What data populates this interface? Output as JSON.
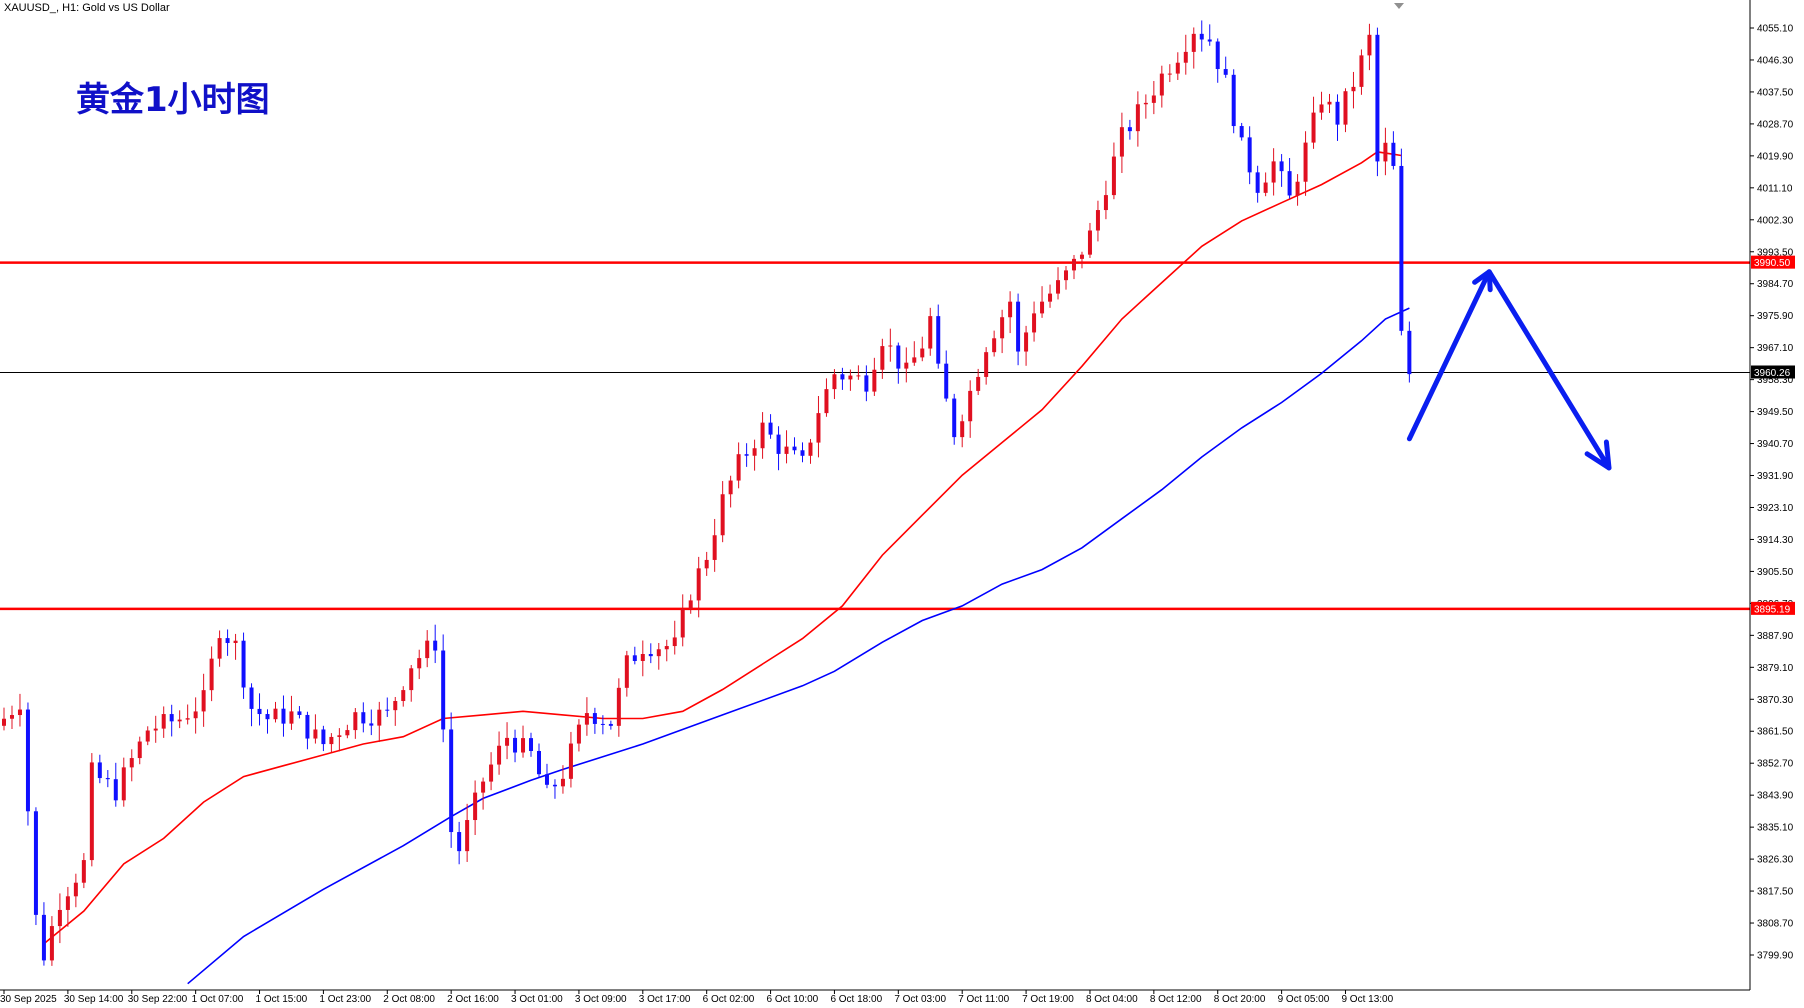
{
  "header": {
    "symbol_label": "XAUUSD_, H1:  Gold vs US Dollar",
    "chart_title": "黄金1小时图"
  },
  "colors": {
    "bull": "#e01020",
    "bear": "#1010ff",
    "ma_fast": "#ff0000",
    "ma_slow": "#0000ff",
    "level_line": "#ff0000",
    "arrow": "#0a1ef0",
    "axis": "#000000",
    "background": "#ffffff"
  },
  "chart_data": {
    "type": "candlestick",
    "symbol": "XAUUSD_",
    "timeframe": "H1",
    "ylim": [
      3791.0,
      4060.0
    ],
    "y_ticks": [
      4055.1,
      4046.3,
      4037.5,
      4028.7,
      4019.9,
      4011.1,
      4002.3,
      3993.5,
      3984.7,
      3975.9,
      3967.1,
      3958.3,
      3949.5,
      3940.7,
      3931.9,
      3923.1,
      3914.3,
      3905.5,
      3896.7,
      3887.9,
      3879.1,
      3870.3,
      3861.5,
      3852.7,
      3843.9,
      3835.1,
      3826.3,
      3817.5,
      3808.7,
      3799.9
    ],
    "y_tick_labels": [
      "4055.10",
      "4046.30",
      "4037.50",
      "4028.70",
      "4019.90",
      "4011.10",
      "4002.30",
      "3993.50",
      "3984.70",
      "3975.90",
      "3967.10",
      "3958.30",
      "3949.50",
      "3940.70",
      "3931.90",
      "3923.10",
      "3914.30",
      "3905.50",
      "3896.70",
      "3887.90",
      "3879.10",
      "3870.30",
      "3861.50",
      "3852.70",
      "3843.90",
      "3835.10",
      "3826.30",
      "3817.50",
      "3808.70",
      "3799.90"
    ],
    "x_ticks": [
      {
        "label": "30 Sep 2025",
        "index": 0
      },
      {
        "label": "30 Sep 14:00",
        "index": 8
      },
      {
        "label": "30 Sep 22:00",
        "index": 16
      },
      {
        "label": "1 Oct 07:00",
        "index": 24
      },
      {
        "label": "1 Oct 15:00",
        "index": 32
      },
      {
        "label": "1 Oct 23:00",
        "index": 40
      },
      {
        "label": "2 Oct 08:00",
        "index": 48
      },
      {
        "label": "2 Oct 16:00",
        "index": 56
      },
      {
        "label": "3 Oct 01:00",
        "index": 64
      },
      {
        "label": "3 Oct 09:00",
        "index": 72
      },
      {
        "label": "3 Oct 17:00",
        "index": 80
      },
      {
        "label": "6 Oct 02:00",
        "index": 88
      },
      {
        "label": "6 Oct 10:00",
        "index": 96
      },
      {
        "label": "6 Oct 18:00",
        "index": 104
      },
      {
        "label": "7 Oct 03:00",
        "index": 112
      },
      {
        "label": "7 Oct 11:00",
        "index": 120
      },
      {
        "label": "7 Oct 19:00",
        "index": 128
      },
      {
        "label": "8 Oct 04:00",
        "index": 136
      },
      {
        "label": "8 Oct 12:00",
        "index": 144
      },
      {
        "label": "8 Oct 20:00",
        "index": 152
      },
      {
        "label": "9 Oct 05:00",
        "index": 160
      },
      {
        "label": "9 Oct 13:00",
        "index": 168
      }
    ],
    "horizontal_levels": [
      {
        "price": 3990.5,
        "label": "3990.50"
      },
      {
        "price": 3895.19,
        "label": "3895.19"
      }
    ],
    "current_price": {
      "price": 3960.26,
      "label": "3960.26"
    },
    "anchors": [
      {
        "i": 0,
        "price": 3865
      },
      {
        "i": 2,
        "price": 3870
      },
      {
        "i": 4,
        "price": 3810
      },
      {
        "i": 5,
        "price": 3800
      },
      {
        "i": 7,
        "price": 3815
      },
      {
        "i": 10,
        "price": 3825
      },
      {
        "i": 11,
        "price": 3850
      },
      {
        "i": 14,
        "price": 3845
      },
      {
        "i": 18,
        "price": 3862
      },
      {
        "i": 22,
        "price": 3865
      },
      {
        "i": 25,
        "price": 3870
      },
      {
        "i": 27,
        "price": 3890
      },
      {
        "i": 29,
        "price": 3885
      },
      {
        "i": 31,
        "price": 3868
      },
      {
        "i": 33,
        "price": 3865
      },
      {
        "i": 36,
        "price": 3866
      },
      {
        "i": 40,
        "price": 3858
      },
      {
        "i": 44,
        "price": 3866
      },
      {
        "i": 48,
        "price": 3866
      },
      {
        "i": 51,
        "price": 3880
      },
      {
        "i": 54,
        "price": 3886
      },
      {
        "i": 55,
        "price": 3862
      },
      {
        "i": 56,
        "price": 3834
      },
      {
        "i": 57,
        "price": 3829
      },
      {
        "i": 60,
        "price": 3848
      },
      {
        "i": 63,
        "price": 3860
      },
      {
        "i": 66,
        "price": 3855
      },
      {
        "i": 68,
        "price": 3844
      },
      {
        "i": 70,
        "price": 3850
      },
      {
        "i": 73,
        "price": 3867
      },
      {
        "i": 76,
        "price": 3864
      },
      {
        "i": 78,
        "price": 3880
      },
      {
        "i": 80,
        "price": 3885
      },
      {
        "i": 84,
        "price": 3885
      },
      {
        "i": 86,
        "price": 3900
      },
      {
        "i": 88,
        "price": 3910
      },
      {
        "i": 90,
        "price": 3925
      },
      {
        "i": 92,
        "price": 3935
      },
      {
        "i": 95,
        "price": 3945
      },
      {
        "i": 97,
        "price": 3940
      },
      {
        "i": 100,
        "price": 3935
      },
      {
        "i": 102,
        "price": 3950
      },
      {
        "i": 104,
        "price": 3960
      },
      {
        "i": 108,
        "price": 3958
      },
      {
        "i": 110,
        "price": 3970
      },
      {
        "i": 113,
        "price": 3960
      },
      {
        "i": 115,
        "price": 3968
      },
      {
        "i": 116,
        "price": 3975
      },
      {
        "i": 117,
        "price": 3960
      },
      {
        "i": 119,
        "price": 3944
      },
      {
        "i": 121,
        "price": 3955
      },
      {
        "i": 123,
        "price": 3968
      },
      {
        "i": 126,
        "price": 3980
      },
      {
        "i": 127,
        "price": 3965
      },
      {
        "i": 129,
        "price": 3978
      },
      {
        "i": 132,
        "price": 3984
      },
      {
        "i": 134,
        "price": 3990
      },
      {
        "i": 136,
        "price": 3998
      },
      {
        "i": 138,
        "price": 4012
      },
      {
        "i": 140,
        "price": 4025
      },
      {
        "i": 143,
        "price": 4035
      },
      {
        "i": 145,
        "price": 4042
      },
      {
        "i": 147,
        "price": 4048
      },
      {
        "i": 149,
        "price": 4055
      },
      {
        "i": 151,
        "price": 4052
      },
      {
        "i": 153,
        "price": 4040
      },
      {
        "i": 155,
        "price": 4022
      },
      {
        "i": 157,
        "price": 4012
      },
      {
        "i": 159,
        "price": 4018
      },
      {
        "i": 161,
        "price": 4008
      },
      {
        "i": 163,
        "price": 4022
      },
      {
        "i": 165,
        "price": 4036
      },
      {
        "i": 167,
        "price": 4030
      },
      {
        "i": 169,
        "price": 4040
      },
      {
        "i": 171,
        "price": 4052
      },
      {
        "i": 172,
        "price": 4018
      },
      {
        "i": 173,
        "price": 4022
      },
      {
        "i": 174,
        "price": 4016
      },
      {
        "i": 175,
        "price": 3970
      },
      {
        "i": 176,
        "price": 3960
      }
    ],
    "moving_averages": [
      {
        "period_desc": "fast",
        "color": "#ff0000",
        "points": [
          {
            "i": 5,
            "price": 3803
          },
          {
            "i": 10,
            "price": 3812
          },
          {
            "i": 15,
            "price": 3825
          },
          {
            "i": 20,
            "price": 3832
          },
          {
            "i": 25,
            "price": 3842
          },
          {
            "i": 30,
            "price": 3849
          },
          {
            "i": 35,
            "price": 3852
          },
          {
            "i": 40,
            "price": 3855
          },
          {
            "i": 45,
            "price": 3858
          },
          {
            "i": 50,
            "price": 3860
          },
          {
            "i": 55,
            "price": 3865
          },
          {
            "i": 60,
            "price": 3866
          },
          {
            "i": 65,
            "price": 3867
          },
          {
            "i": 70,
            "price": 3866
          },
          {
            "i": 75,
            "price": 3865
          },
          {
            "i": 80,
            "price": 3865
          },
          {
            "i": 85,
            "price": 3867
          },
          {
            "i": 90,
            "price": 3873
          },
          {
            "i": 95,
            "price": 3880
          },
          {
            "i": 100,
            "price": 3887
          },
          {
            "i": 105,
            "price": 3896
          },
          {
            "i": 110,
            "price": 3910
          },
          {
            "i": 115,
            "price": 3921
          },
          {
            "i": 120,
            "price": 3932
          },
          {
            "i": 125,
            "price": 3941
          },
          {
            "i": 130,
            "price": 3950
          },
          {
            "i": 135,
            "price": 3962
          },
          {
            "i": 140,
            "price": 3975
          },
          {
            "i": 145,
            "price": 3985
          },
          {
            "i": 150,
            "price": 3995
          },
          {
            "i": 155,
            "price": 4002
          },
          {
            "i": 160,
            "price": 4007
          },
          {
            "i": 165,
            "price": 4012
          },
          {
            "i": 170,
            "price": 4018
          },
          {
            "i": 172,
            "price": 4021
          },
          {
            "i": 175,
            "price": 4020
          }
        ]
      },
      {
        "period_desc": "slow",
        "color": "#0000ff",
        "points": [
          {
            "i": 23,
            "price": 3792
          },
          {
            "i": 30,
            "price": 3805
          },
          {
            "i": 40,
            "price": 3818
          },
          {
            "i": 50,
            "price": 3830
          },
          {
            "i": 56,
            "price": 3838
          },
          {
            "i": 60,
            "price": 3843
          },
          {
            "i": 66,
            "price": 3848
          },
          {
            "i": 70,
            "price": 3851
          },
          {
            "i": 80,
            "price": 3858
          },
          {
            "i": 90,
            "price": 3866
          },
          {
            "i": 100,
            "price": 3874
          },
          {
            "i": 104,
            "price": 3878
          },
          {
            "i": 110,
            "price": 3886
          },
          {
            "i": 115,
            "price": 3892
          },
          {
            "i": 120,
            "price": 3896
          },
          {
            "i": 125,
            "price": 3902
          },
          {
            "i": 130,
            "price": 3906
          },
          {
            "i": 135,
            "price": 3912
          },
          {
            "i": 140,
            "price": 3920
          },
          {
            "i": 145,
            "price": 3928
          },
          {
            "i": 150,
            "price": 3937
          },
          {
            "i": 155,
            "price": 3945
          },
          {
            "i": 160,
            "price": 3952
          },
          {
            "i": 165,
            "price": 3960
          },
          {
            "i": 170,
            "price": 3969
          },
          {
            "i": 173,
            "price": 3975
          },
          {
            "i": 176,
            "price": 3978
          }
        ]
      }
    ],
    "projection_arrow": {
      "color": "#0a1ef0",
      "points": [
        {
          "i": 176,
          "price": 3942
        },
        {
          "i": 186,
          "price": 3988
        },
        {
          "i": 201,
          "price": 3934
        }
      ]
    }
  }
}
